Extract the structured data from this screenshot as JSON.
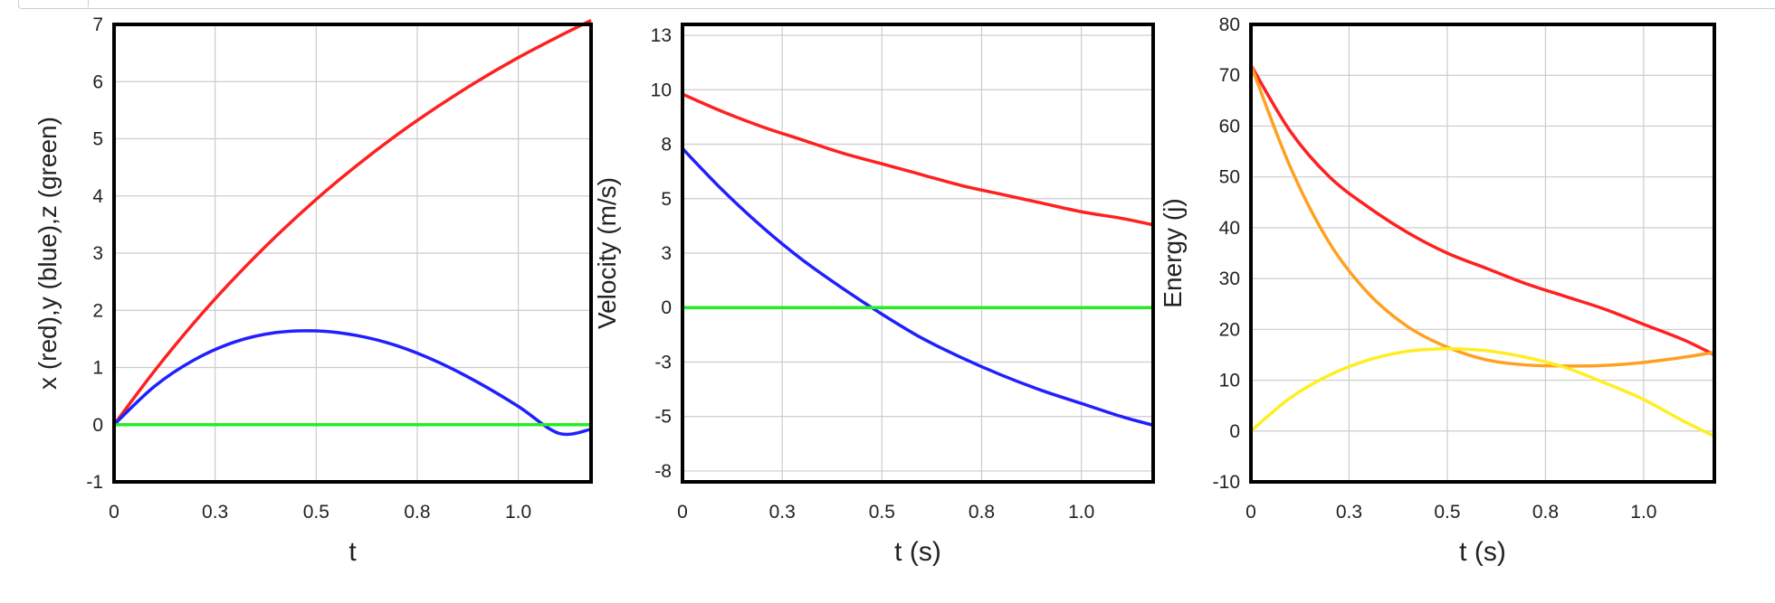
{
  "chart_data": [
    {
      "type": "line",
      "title": "",
      "xlabel": "t",
      "ylabel": "x (red),y (blue),z (green)",
      "xlim": [
        0,
        1.18
      ],
      "ylim": [
        -1,
        7
      ],
      "grid": true,
      "legend": "none",
      "x_ticks": [
        0,
        0.25,
        0.5,
        0.75,
        1.0
      ],
      "x_tick_labels": [
        "0",
        "0.3",
        "0.5",
        "0.8",
        "1.0"
      ],
      "y_ticks": [
        -1,
        0,
        1,
        2,
        3,
        4,
        5,
        6,
        7
      ],
      "y_tick_labels": [
        "-1",
        "0",
        "1",
        "2",
        "3",
        "4",
        "5",
        "6",
        "7"
      ],
      "series": [
        {
          "color": "#ff2020",
          "x": [
            0,
            0.1,
            0.2,
            0.3,
            0.4,
            0.5,
            0.6,
            0.7,
            0.8,
            0.9,
            1.0,
            1.1,
            1.18
          ],
          "y": [
            0,
            0.94,
            1.8,
            2.58,
            3.29,
            3.94,
            4.53,
            5.07,
            5.56,
            6.01,
            6.42,
            6.79,
            7.07
          ]
        },
        {
          "color": "#2020ff",
          "x": [
            0,
            0.1,
            0.2,
            0.3,
            0.4,
            0.5,
            0.6,
            0.7,
            0.8,
            0.9,
            1.0,
            1.1,
            1.18
          ],
          "y": [
            0,
            0.67,
            1.14,
            1.45,
            1.61,
            1.64,
            1.56,
            1.38,
            1.1,
            0.74,
            0.32,
            -0.15,
            -0.08
          ]
        },
        {
          "color": "#22ee22",
          "x": [
            0,
            1.18
          ],
          "y": [
            0,
            0
          ]
        }
      ]
    },
    {
      "type": "line",
      "title": "",
      "xlabel": "t (s)",
      "ylabel": "Velocity (m/s)",
      "xlim": [
        0,
        1.18
      ],
      "ylim": [
        -8,
        13
      ],
      "grid": true,
      "legend": "none",
      "x_ticks": [
        0,
        0.25,
        0.5,
        0.75,
        1.0
      ],
      "x_tick_labels": [
        "0",
        "0.3",
        "0.5",
        "0.8",
        "1.0"
      ],
      "y_ticks": [
        -7.5,
        -5,
        -2.5,
        0,
        2.5,
        5,
        7.5,
        10,
        12.5
      ],
      "y_tick_labels": [
        "-8",
        "-5",
        "-3",
        "0",
        "3",
        "5",
        "8",
        "10",
        "13"
      ],
      "series": [
        {
          "color": "#ff2020",
          "x": [
            0,
            0.1,
            0.2,
            0.3,
            0.4,
            0.5,
            0.6,
            0.7,
            0.8,
            0.9,
            1.0,
            1.1,
            1.18
          ],
          "y": [
            9.8,
            9.0,
            8.3,
            7.7,
            7.1,
            6.6,
            6.1,
            5.6,
            5.2,
            4.8,
            4.4,
            4.1,
            3.8
          ]
        },
        {
          "color": "#2020ff",
          "x": [
            0,
            0.1,
            0.2,
            0.3,
            0.4,
            0.5,
            0.6,
            0.7,
            0.8,
            0.9,
            1.0,
            1.1,
            1.18
          ],
          "y": [
            7.3,
            5.4,
            3.7,
            2.2,
            0.9,
            -0.3,
            -1.4,
            -2.3,
            -3.1,
            -3.8,
            -4.4,
            -5.0,
            -5.4
          ]
        },
        {
          "color": "#22ee22",
          "x": [
            0,
            1.18
          ],
          "y": [
            0,
            0
          ]
        }
      ]
    },
    {
      "type": "line",
      "title": "",
      "xlabel": "t (s)",
      "ylabel": "Energy (j)",
      "xlim": [
        0,
        1.18
      ],
      "ylim": [
        -10,
        80
      ],
      "grid": true,
      "legend": "none",
      "x_ticks": [
        0,
        0.25,
        0.5,
        0.75,
        1.0
      ],
      "x_tick_labels": [
        "0",
        "0.3",
        "0.5",
        "0.8",
        "1.0"
      ],
      "y_ticks": [
        -10,
        0,
        10,
        20,
        30,
        40,
        50,
        60,
        70,
        80
      ],
      "y_tick_labels": [
        "-10",
        "0",
        "10",
        "20",
        "30",
        "40",
        "50",
        "60",
        "70",
        "80"
      ],
      "series": [
        {
          "color": "#ff2020",
          "x": [
            0,
            0.1,
            0.2,
            0.3,
            0.4,
            0.5,
            0.6,
            0.7,
            0.8,
            0.9,
            1.0,
            1.1,
            1.18
          ],
          "y": [
            72,
            59,
            50,
            44,
            39,
            35,
            32,
            29,
            26.5,
            24,
            21,
            18,
            15
          ]
        },
        {
          "color": "#ffa020",
          "x": [
            0,
            0.1,
            0.2,
            0.3,
            0.4,
            0.5,
            0.6,
            0.7,
            0.8,
            0.9,
            1.0,
            1.1,
            1.18
          ],
          "y": [
            72,
            52,
            37,
            27,
            20.5,
            16.5,
            14,
            13,
            12.8,
            12.9,
            13.5,
            14.5,
            15.5
          ]
        },
        {
          "color": "#ffee20",
          "x": [
            0,
            0.1,
            0.2,
            0.3,
            0.4,
            0.5,
            0.6,
            0.7,
            0.8,
            0.9,
            1.0,
            1.1,
            1.18
          ],
          "y": [
            0,
            6.5,
            11,
            14,
            15.7,
            16.2,
            15.8,
            14.5,
            12.5,
            9.5,
            6.2,
            2.0,
            -1.0
          ]
        }
      ]
    }
  ]
}
